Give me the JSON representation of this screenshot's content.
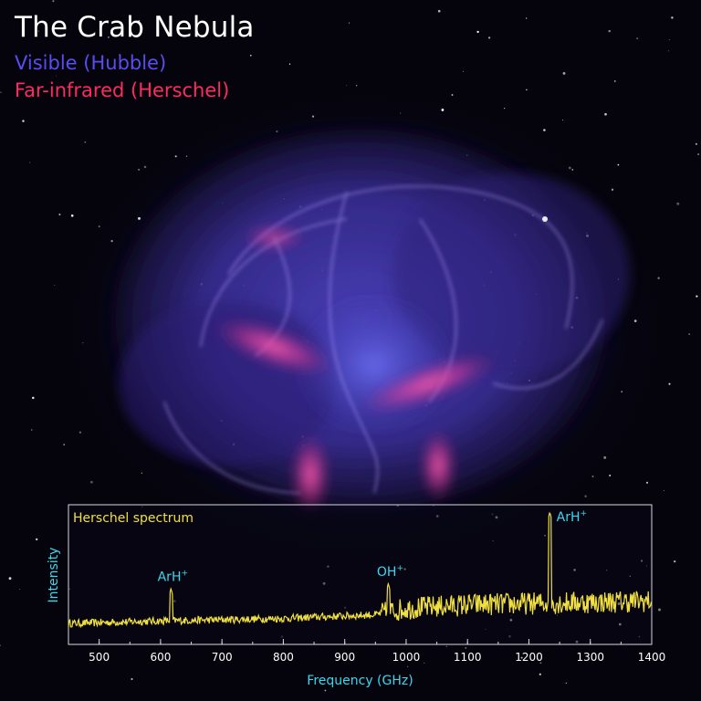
{
  "header": {
    "title": "The Crab Nebula",
    "legend": [
      {
        "label": "Visible (Hubble)",
        "color": "#5a4cf0"
      },
      {
        "label": "Far-infrared (Herschel)",
        "color": "#ff2a62"
      }
    ]
  },
  "colors": {
    "spectrum": "#f0e040",
    "annotation": "#3ad8ee",
    "frame": "#d8d8e0",
    "ticks": "#ffffff"
  },
  "chart_data": {
    "type": "line",
    "title": "Herschel spectrum",
    "xlabel": "Frequency (GHz)",
    "ylabel": "Intensity",
    "xlim": [
      450,
      1400
    ],
    "ylim": [
      0,
      1
    ],
    "xticks": [
      500,
      600,
      700,
      800,
      900,
      1000,
      1100,
      1200,
      1300,
      1400
    ],
    "grid": false,
    "baseline": [
      {
        "x": 450,
        "y": 0.08
      },
      {
        "x": 600,
        "y": 0.1
      },
      {
        "x": 800,
        "y": 0.12
      },
      {
        "x": 950,
        "y": 0.15
      },
      {
        "x": 1000,
        "y": 0.2
      },
      {
        "x": 1100,
        "y": 0.23
      },
      {
        "x": 1200,
        "y": 0.24
      },
      {
        "x": 1300,
        "y": 0.25
      },
      {
        "x": 1400,
        "y": 0.26
      }
    ],
    "peaks": [
      {
        "label": "ArH",
        "sup": "+",
        "x": 617,
        "y": 0.36
      },
      {
        "label": "OH",
        "sup": "+",
        "x": 971,
        "y": 0.4
      },
      {
        "label": "ArH",
        "sup": "+",
        "x": 1234,
        "y": 0.97
      }
    ]
  }
}
